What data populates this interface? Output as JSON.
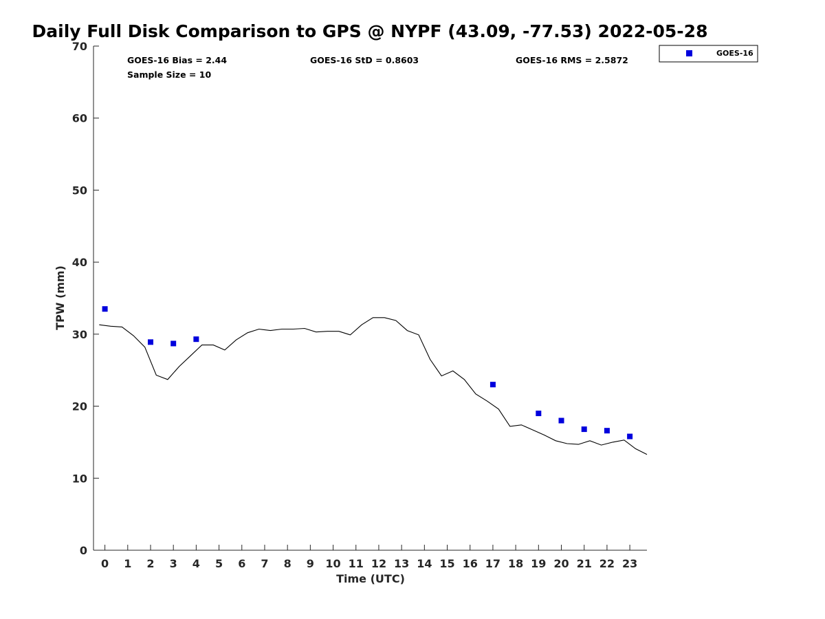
{
  "chart_data": {
    "type": "scatter",
    "title": "Daily Full Disk Comparison to GPS @ NYPF (43.09, -77.53) 2022-05-28",
    "xlabel": "Time (UTC)",
    "ylabel": "TPW (mm)",
    "xlim": [
      -0.5,
      23.75
    ],
    "ylim": [
      0,
      70
    ],
    "x_ticks": [
      0,
      1,
      2,
      3,
      4,
      5,
      6,
      7,
      8,
      9,
      10,
      11,
      12,
      13,
      14,
      15,
      16,
      17,
      18,
      19,
      20,
      21,
      22,
      23
    ],
    "y_ticks": [
      0,
      10,
      20,
      30,
      40,
      50,
      60,
      70
    ],
    "grid": false,
    "legend_position": "top-right outside",
    "stats": {
      "bias": "GOES-16 Bias = 2.44",
      "sample_size": "Sample Size = 10",
      "std": "GOES-16 StD = 0.8603",
      "rms": "GOES-16 RMS = 2.5872"
    },
    "series": [
      {
        "name": "GOES-16",
        "kind": "marker",
        "color": "#0000dd",
        "x": [
          0,
          2,
          3,
          4,
          17,
          19,
          20,
          21,
          22,
          23
        ],
        "y": [
          33.5,
          28.9,
          28.7,
          29.3,
          23.0,
          19.0,
          18.0,
          16.8,
          16.6,
          15.8
        ]
      },
      {
        "kind": "line",
        "color": "#000000",
        "x": [
          -0.25,
          0.25,
          0.75,
          1.25,
          1.75,
          2.25,
          2.75,
          3.25,
          3.75,
          4.25,
          4.75,
          5.25,
          5.75,
          6.25,
          6.75,
          7.25,
          7.75,
          8.25,
          8.75,
          9.25,
          9.75,
          10.25,
          10.75,
          11.25,
          11.75,
          12.25,
          12.75,
          13.25,
          13.75,
          14.25,
          14.75,
          15.25,
          15.75,
          16.25,
          16.75,
          17.25,
          17.75,
          18.25,
          18.75,
          19.25,
          19.75,
          20.25,
          20.75,
          21.25,
          21.75,
          22.25,
          22.75,
          23.25,
          23.75
        ],
        "y": [
          31.3,
          31.1,
          31.0,
          29.8,
          28.2,
          24.3,
          23.7,
          25.5,
          27.0,
          28.5,
          28.5,
          27.8,
          29.2,
          30.2,
          30.7,
          30.5,
          30.7,
          30.7,
          30.8,
          30.3,
          30.4,
          30.4,
          29.9,
          31.3,
          32.3,
          32.3,
          31.9,
          30.5,
          29.9,
          26.5,
          24.2,
          24.9,
          23.7,
          21.7,
          20.7,
          19.6,
          17.2,
          17.4,
          16.7,
          16.0,
          15.2,
          14.8,
          14.7,
          15.2,
          14.6,
          15.0,
          15.3,
          14.1,
          13.3
        ]
      }
    ]
  }
}
